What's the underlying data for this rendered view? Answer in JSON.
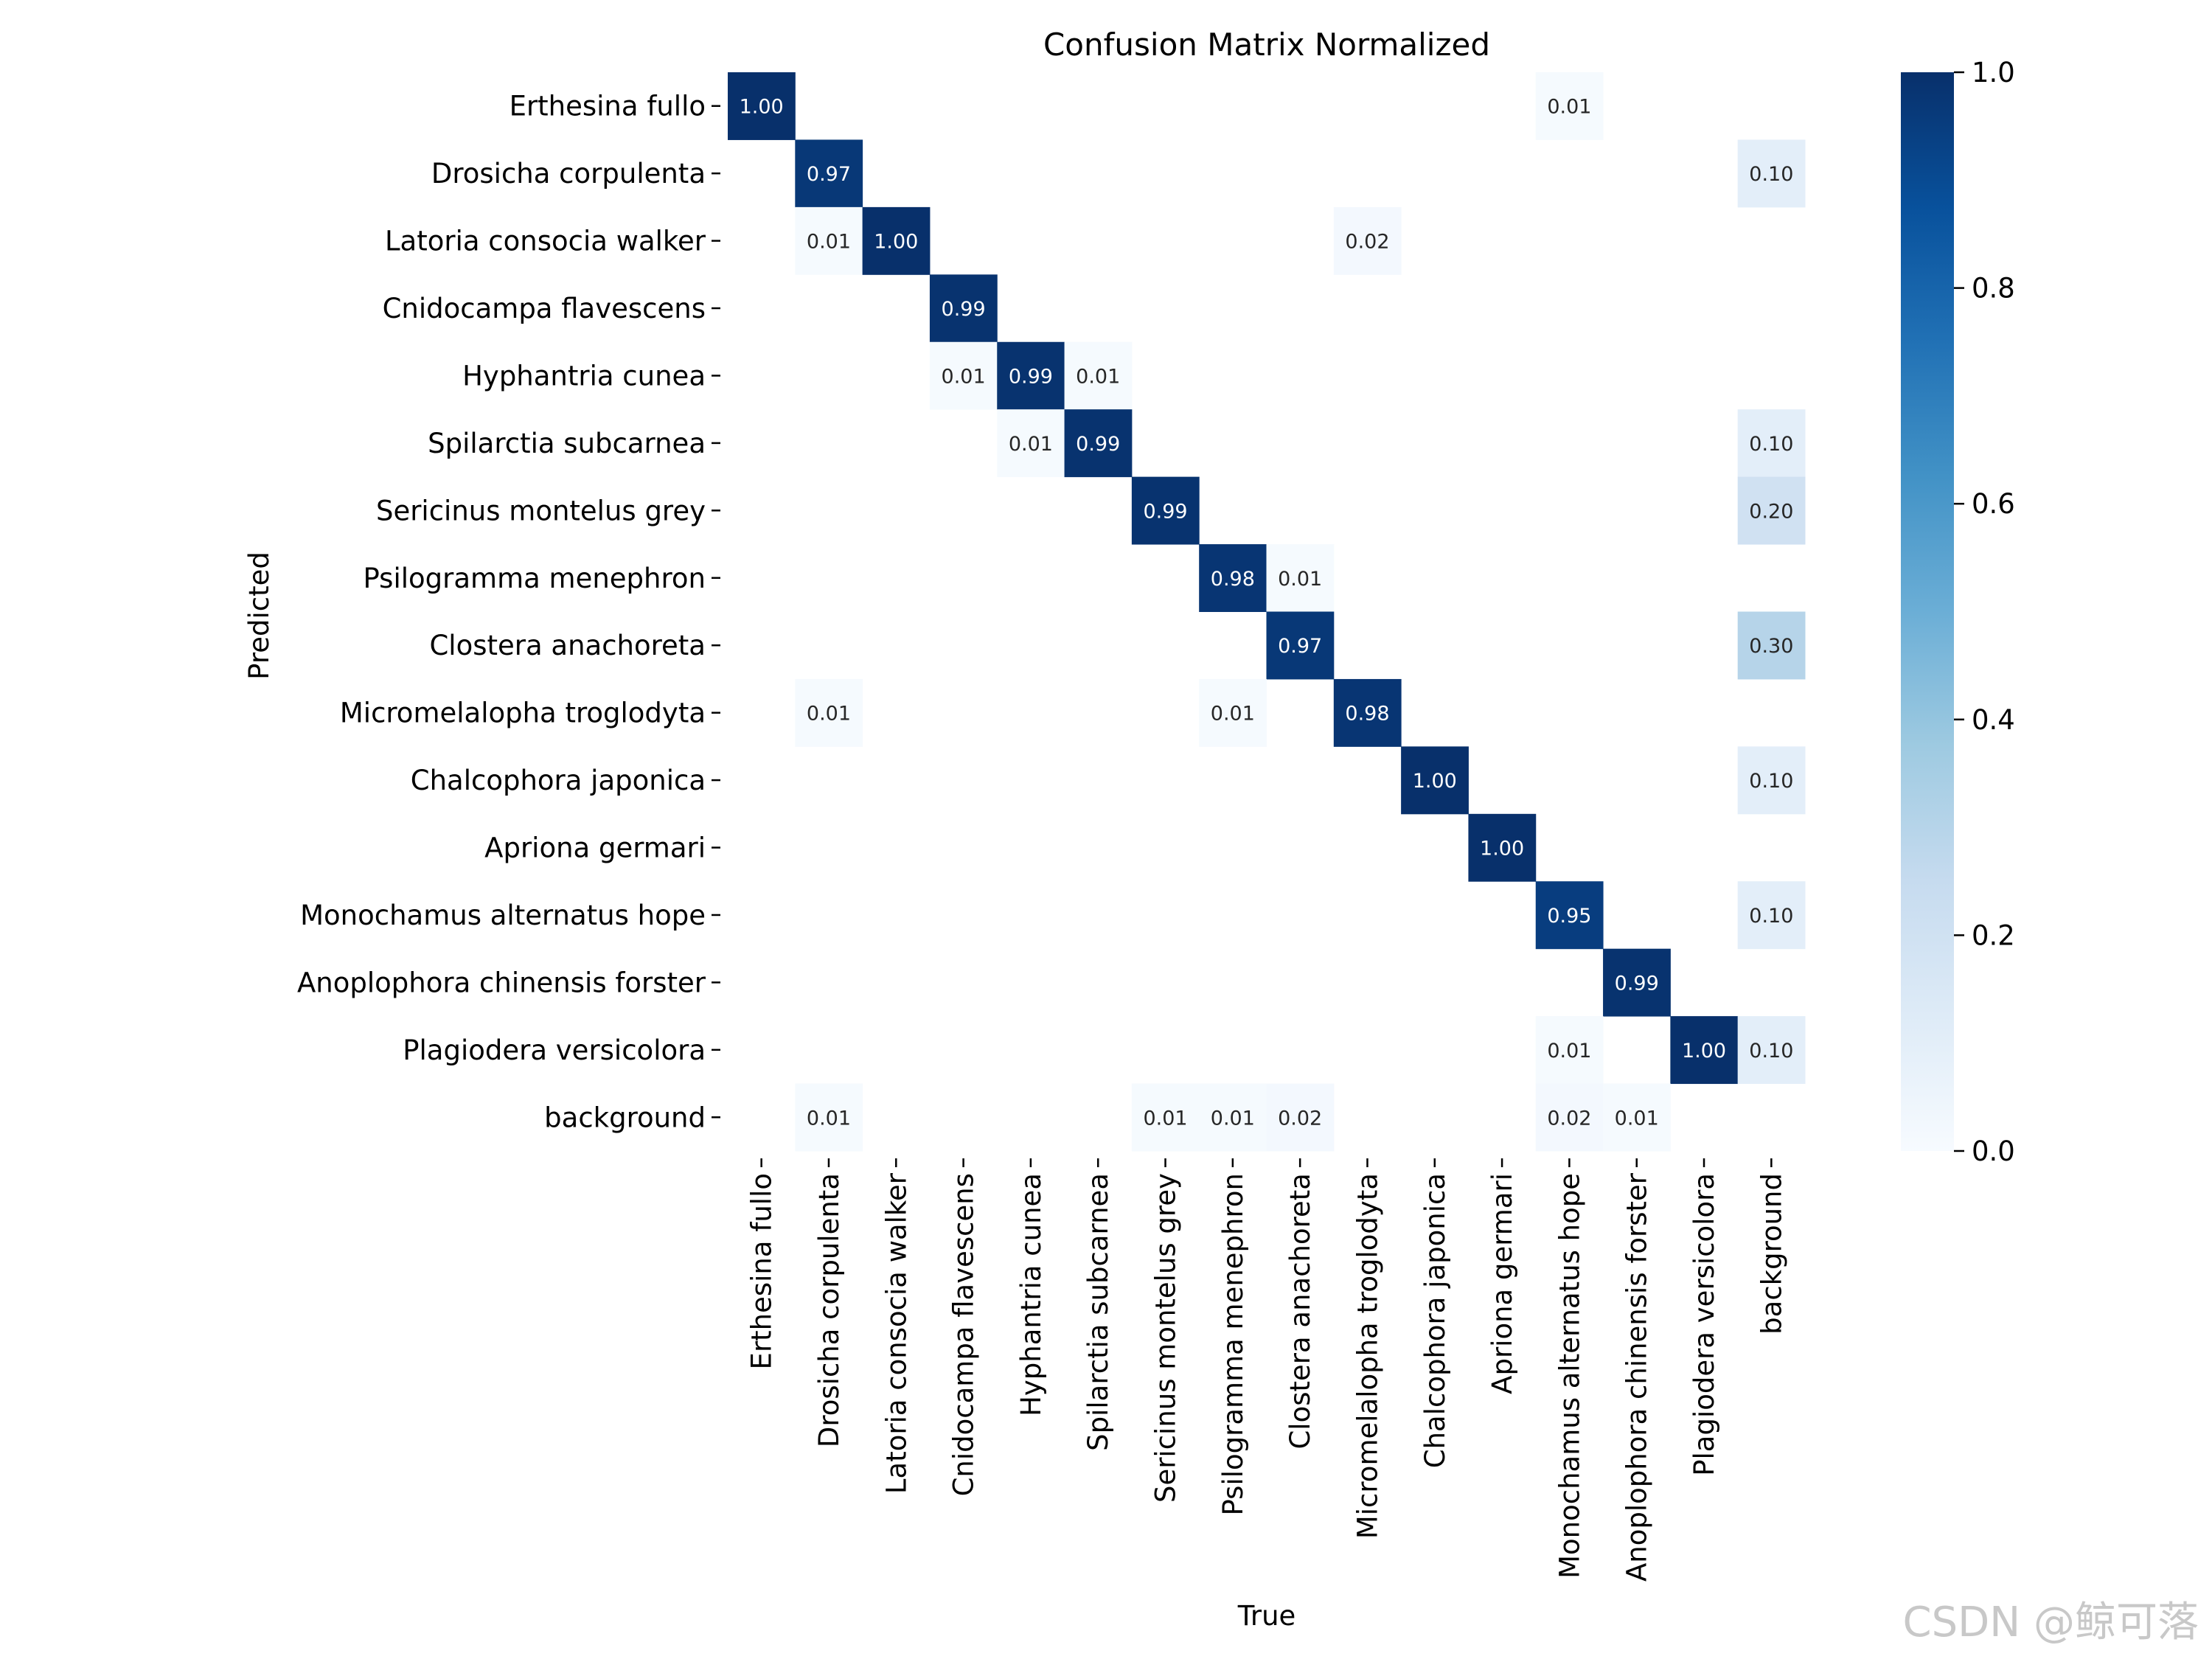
{
  "chart_data": {
    "type": "heatmap",
    "title": "Confusion Matrix Normalized",
    "xlabel": "True",
    "ylabel": "Predicted",
    "labels": [
      "Erthesina fullo",
      "Drosicha corpulenta",
      "Latoria consocia walker",
      "Cnidocampa flavescens",
      "Hyphantria cunea",
      "Spilarctia subcarnea",
      "Sericinus montelus grey",
      "Psilogramma menephron",
      "Clostera anachoreta",
      "Micromelalopha troglodyta",
      "Chalcophora japonica",
      "Apriona germari",
      "Monochamus alternatus hope",
      "Anoplophora chinensis forster",
      "Plagiodera versicolora",
      "background"
    ],
    "matrix": [
      [
        1.0,
        null,
        null,
        null,
        null,
        null,
        null,
        null,
        null,
        null,
        null,
        null,
        0.01,
        null,
        null,
        null
      ],
      [
        null,
        0.97,
        null,
        null,
        null,
        null,
        null,
        null,
        null,
        null,
        null,
        null,
        null,
        null,
        null,
        0.1
      ],
      [
        null,
        0.01,
        1.0,
        null,
        null,
        null,
        null,
        null,
        null,
        0.02,
        null,
        null,
        null,
        null,
        null,
        null
      ],
      [
        null,
        null,
        null,
        0.99,
        null,
        null,
        null,
        null,
        null,
        null,
        null,
        null,
        null,
        null,
        null,
        null
      ],
      [
        null,
        null,
        null,
        0.01,
        0.99,
        0.01,
        null,
        null,
        null,
        null,
        null,
        null,
        null,
        null,
        null,
        null
      ],
      [
        null,
        null,
        null,
        null,
        0.01,
        0.99,
        null,
        null,
        null,
        null,
        null,
        null,
        null,
        null,
        null,
        0.1
      ],
      [
        null,
        null,
        null,
        null,
        null,
        null,
        0.99,
        null,
        null,
        null,
        null,
        null,
        null,
        null,
        null,
        0.2
      ],
      [
        null,
        null,
        null,
        null,
        null,
        null,
        null,
        0.98,
        0.01,
        null,
        null,
        null,
        null,
        null,
        null,
        null
      ],
      [
        null,
        null,
        null,
        null,
        null,
        null,
        null,
        null,
        0.97,
        null,
        null,
        null,
        null,
        null,
        null,
        0.3
      ],
      [
        null,
        0.01,
        null,
        null,
        null,
        null,
        null,
        0.01,
        null,
        0.98,
        null,
        null,
        null,
        null,
        null,
        null
      ],
      [
        null,
        null,
        null,
        null,
        null,
        null,
        null,
        null,
        null,
        null,
        1.0,
        null,
        null,
        null,
        null,
        0.1
      ],
      [
        null,
        null,
        null,
        null,
        null,
        null,
        null,
        null,
        null,
        null,
        null,
        1.0,
        null,
        null,
        null,
        null
      ],
      [
        null,
        null,
        null,
        null,
        null,
        null,
        null,
        null,
        null,
        null,
        null,
        null,
        0.95,
        null,
        null,
        0.1
      ],
      [
        null,
        null,
        null,
        null,
        null,
        null,
        null,
        null,
        null,
        null,
        null,
        null,
        null,
        0.99,
        null,
        null
      ],
      [
        null,
        null,
        null,
        null,
        null,
        null,
        null,
        null,
        null,
        null,
        null,
        null,
        0.01,
        null,
        1.0,
        0.1
      ],
      [
        null,
        0.01,
        null,
        null,
        null,
        null,
        0.01,
        0.01,
        0.02,
        null,
        null,
        null,
        0.02,
        0.01,
        null,
        null
      ]
    ],
    "colorbar": {
      "range": [
        0.0,
        1.0
      ],
      "ticks": [
        0.0,
        0.2,
        0.4,
        0.6,
        0.8,
        1.0
      ],
      "tick_labels": [
        "0.0",
        "0.2",
        "0.4",
        "0.6",
        "0.8",
        "1.0"
      ],
      "colormap": "Blues"
    }
  },
  "watermark": "CSDN @鲸可落"
}
